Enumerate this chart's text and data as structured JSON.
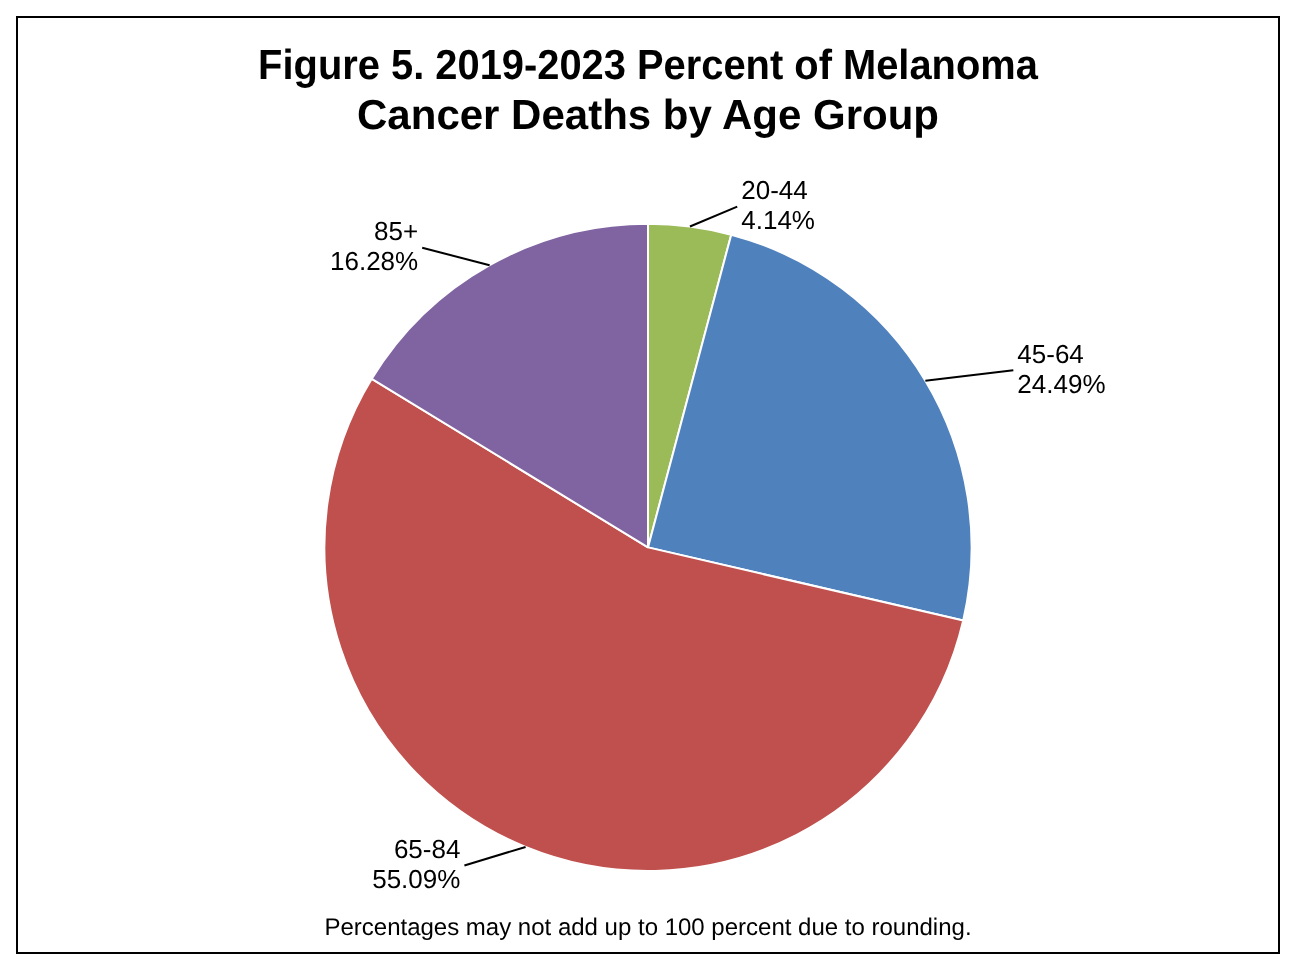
{
  "chart_data": {
    "type": "pie",
    "title": "Figure 5. 2019-2023 Percent of Melanoma\nCancer Deaths by Age Group",
    "categories": [
      "20-44",
      "45-64",
      "65-84",
      "85+"
    ],
    "values": [
      4.14,
      24.49,
      55.09,
      16.28
    ],
    "colors": [
      "#9bbb59",
      "#4f81bd",
      "#c0504d",
      "#8064a2"
    ],
    "value_labels": [
      "4.14%",
      "24.49%",
      "55.09%",
      "16.28%"
    ],
    "annotations": [
      "Percentages may not add up to 100 percent due to rounding."
    ],
    "legend": false
  }
}
